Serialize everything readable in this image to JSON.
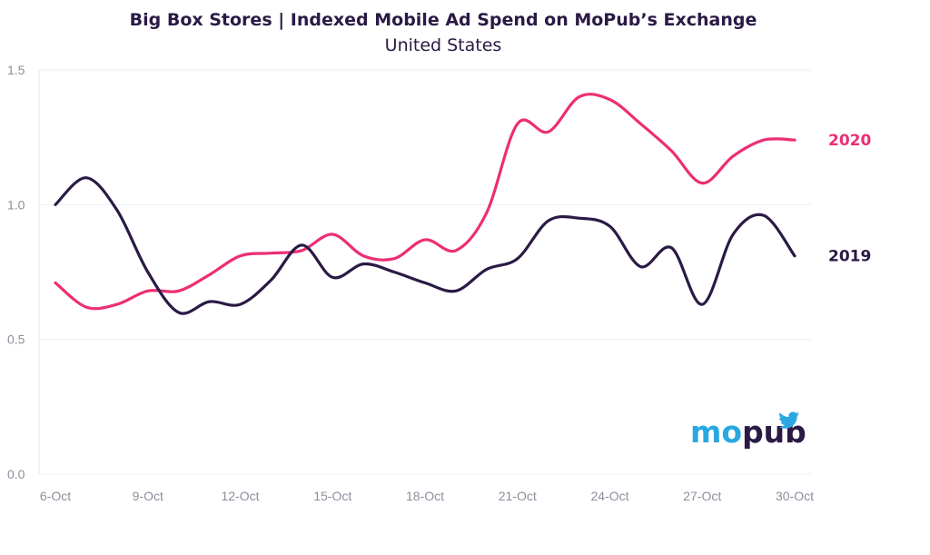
{
  "chart_data": {
    "type": "line",
    "title": "Big Box Stores | Indexed Mobile Ad Spend on MoPub’s Exchange",
    "subtitle": "United States",
    "xlabel": "",
    "ylabel": "",
    "ylim": [
      0,
      1.5
    ],
    "yticks": [
      "0.0",
      "0.5",
      "1.0",
      "1.5"
    ],
    "xtick_labels": [
      "6-Oct",
      "9-Oct",
      "12-Oct",
      "15-Oct",
      "18-Oct",
      "21-Oct",
      "24-Oct",
      "27-Oct",
      "30-Oct"
    ],
    "x": [
      "6-Oct",
      "7-Oct",
      "8-Oct",
      "9-Oct",
      "10-Oct",
      "11-Oct",
      "12-Oct",
      "13-Oct",
      "14-Oct",
      "15-Oct",
      "16-Oct",
      "17-Oct",
      "18-Oct",
      "19-Oct",
      "20-Oct",
      "21-Oct",
      "22-Oct",
      "23-Oct",
      "24-Oct",
      "25-Oct",
      "26-Oct",
      "27-Oct",
      "28-Oct",
      "29-Oct",
      "30-Oct"
    ],
    "series": [
      {
        "name": "2020",
        "color": "#ec2e74",
        "values": [
          0.71,
          0.62,
          0.63,
          0.68,
          0.68,
          0.74,
          0.81,
          0.82,
          0.83,
          0.89,
          0.81,
          0.8,
          0.87,
          0.83,
          0.97,
          1.3,
          1.27,
          1.4,
          1.39,
          1.3,
          1.2,
          1.08,
          1.18,
          1.24,
          1.24
        ]
      },
      {
        "name": "2019",
        "color": "#2a1a45",
        "values": [
          1.0,
          1.1,
          0.98,
          0.75,
          0.6,
          0.64,
          0.63,
          0.72,
          0.85,
          0.73,
          0.78,
          0.75,
          0.71,
          0.68,
          0.76,
          0.8,
          0.94,
          0.95,
          0.92,
          0.77,
          0.84,
          0.63,
          0.89,
          0.96,
          0.81
        ]
      }
    ],
    "grid": true,
    "legend": "right, inline labels"
  },
  "branding": {
    "logo_text_1": "mo",
    "logo_text_2": "pub",
    "icon": "bird-icon"
  }
}
